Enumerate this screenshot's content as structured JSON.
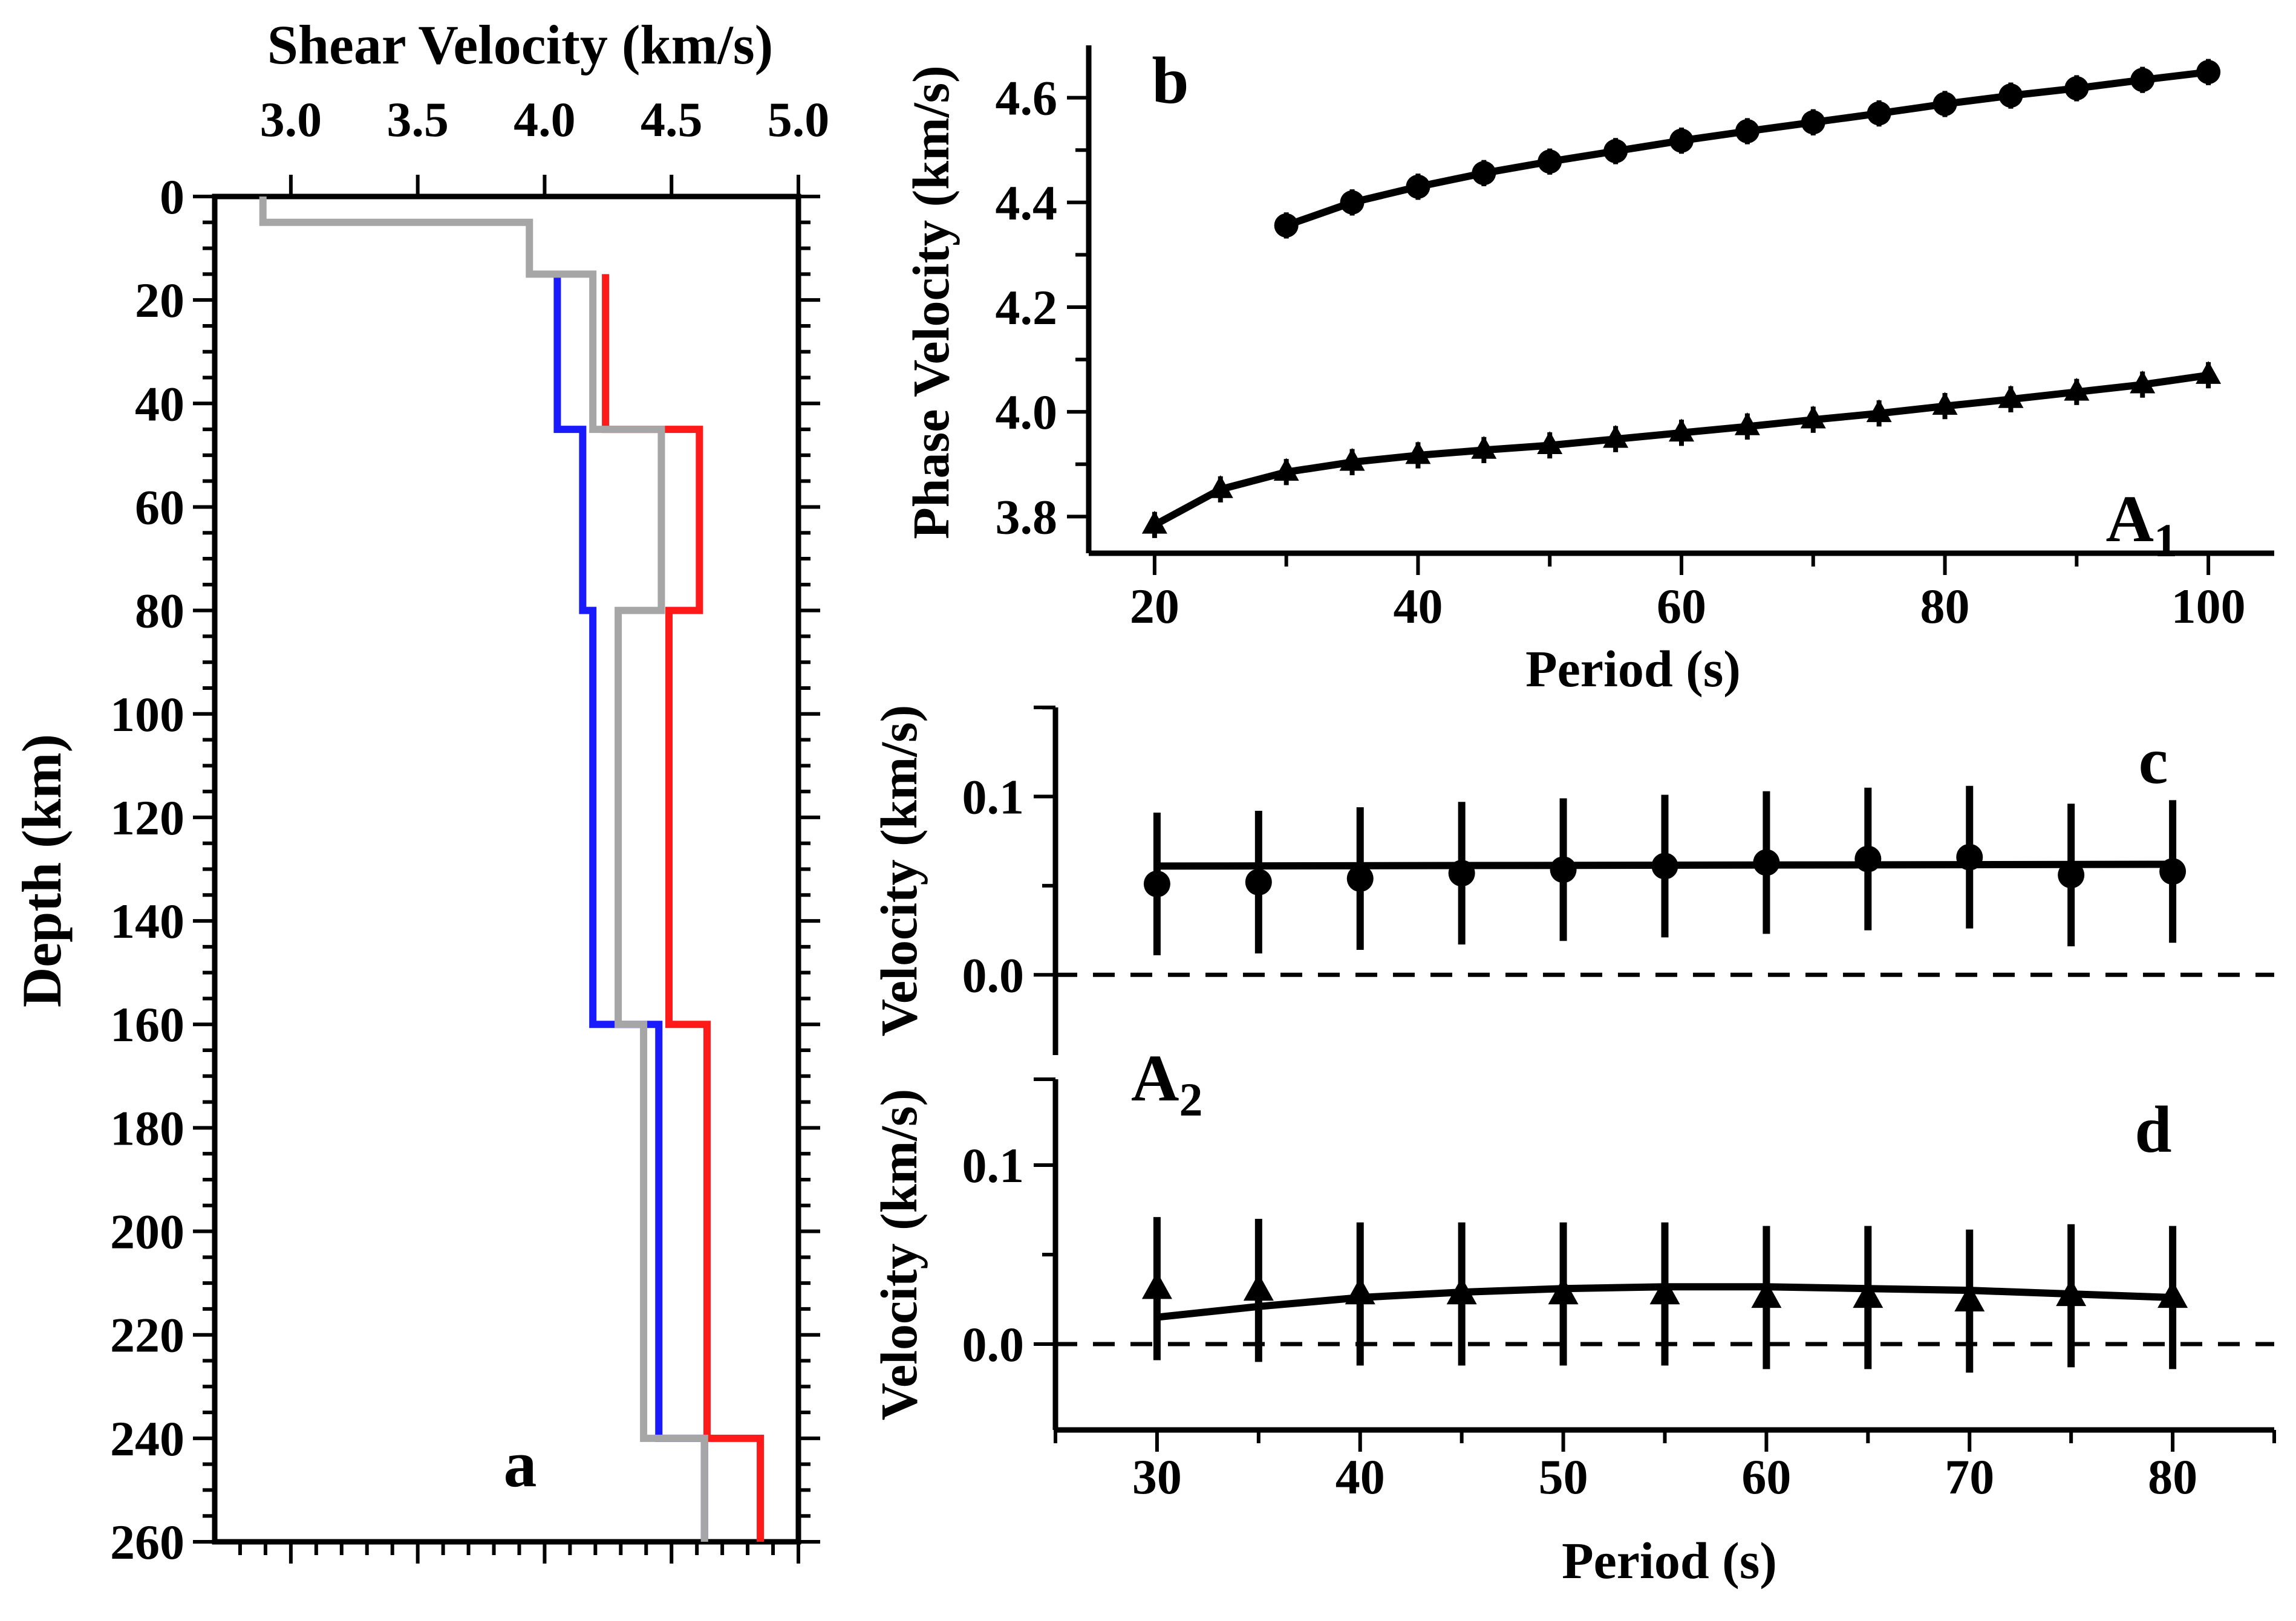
{
  "chart_data": [
    {
      "panel": "a",
      "type": "line",
      "subtype": "step-profile",
      "xlabel": "Shear Velocity (km/s)",
      "ylabel": "Depth (km)",
      "xlim": [
        2.7,
        5.0
      ],
      "ylim": [
        260,
        0
      ],
      "xticks": [
        "3.0",
        "3.5",
        "4.0",
        "4.5",
        "5.0"
      ],
      "yticks": [
        "0",
        "20",
        "40",
        "60",
        "80",
        "100",
        "120",
        "140",
        "160",
        "180",
        "200",
        "220",
        "240",
        "260"
      ],
      "panel_label": "a",
      "series": [
        {
          "name": "blue profile",
          "color": "#1a1aff",
          "depth": [
            15,
            45,
            45,
            80,
            80,
            160,
            160,
            240,
            240,
            260
          ],
          "velocity": [
            4.05,
            4.05,
            4.15,
            4.15,
            4.19,
            4.19,
            4.45,
            4.45,
            4.63,
            4.63
          ]
        },
        {
          "name": "red profile",
          "color": "#ff1a1a",
          "depth": [
            15,
            45,
            45,
            80,
            80,
            160,
            160,
            240,
            240,
            260
          ],
          "velocity": [
            4.24,
            4.24,
            4.61,
            4.61,
            4.49,
            4.49,
            4.64,
            4.64,
            4.85,
            4.85
          ]
        },
        {
          "name": "gray profile",
          "color": "#a6a6a6",
          "depth": [
            0,
            5,
            5,
            15,
            15,
            45,
            45,
            80,
            80,
            160,
            160,
            240,
            240,
            260
          ],
          "velocity": [
            2.89,
            2.89,
            3.94,
            3.94,
            4.19,
            4.19,
            4.46,
            4.46,
            4.29,
            4.29,
            4.39,
            4.39,
            4.63,
            4.63
          ]
        }
      ]
    },
    {
      "panel": "b",
      "type": "line",
      "xlabel": "Period (s)",
      "ylabel": "Phase Velocity (km/s)",
      "xlim": [
        15,
        105
      ],
      "ylim": [
        3.73,
        4.7
      ],
      "xticks": [
        "20",
        "40",
        "60",
        "80",
        "100"
      ],
      "yticks": [
        "3.8",
        "4.0",
        "4.2",
        "4.4",
        "4.6"
      ],
      "panel_label": "b",
      "annotation": {
        "main": "A",
        "sub": "1"
      },
      "series": [
        {
          "name": "upper (circles)",
          "marker": "circle",
          "x": [
            30,
            35,
            40,
            45,
            50,
            55,
            60,
            65,
            70,
            75,
            80,
            85,
            90,
            95,
            100
          ],
          "y": [
            4.356,
            4.4,
            4.43,
            4.456,
            4.478,
            4.498,
            4.518,
            4.536,
            4.553,
            4.57,
            4.588,
            4.604,
            4.618,
            4.634,
            4.649
          ],
          "err": 0.025
        },
        {
          "name": "lower (triangles)",
          "marker": "triangle",
          "x": [
            20,
            25,
            30,
            35,
            40,
            45,
            50,
            55,
            60,
            65,
            70,
            75,
            80,
            85,
            90,
            95,
            100
          ],
          "y": [
            3.784,
            3.852,
            3.885,
            3.904,
            3.917,
            3.927,
            3.936,
            3.948,
            3.96,
            3.972,
            3.985,
            3.997,
            4.011,
            4.024,
            4.038,
            4.052,
            4.07
          ],
          "err": 0.025
        }
      ]
    },
    {
      "panel": "c",
      "type": "line",
      "xlabel": "",
      "ylabel": "Velocity (km/s)",
      "xlim": [
        25,
        85
      ],
      "ylim": [
        -0.045,
        0.15
      ],
      "yticks": [
        "0.0",
        "0.1"
      ],
      "panel_label": "c",
      "series": [
        {
          "name": "circles",
          "marker": "circle",
          "x": [
            30,
            35,
            40,
            45,
            50,
            55,
            60,
            65,
            70,
            75,
            80
          ],
          "y": [
            0.051,
            0.052,
            0.054,
            0.057,
            0.059,
            0.061,
            0.063,
            0.065,
            0.066,
            0.056,
            0.058
          ],
          "err": 0.04,
          "fit": [
            0.061,
            0.062
          ]
        }
      ]
    },
    {
      "panel": "d",
      "type": "line",
      "xlabel": "Period (s)",
      "ylabel": "Velocity (km/s)",
      "xlim": [
        25,
        85
      ],
      "ylim": [
        -0.048,
        0.148
      ],
      "xticks": [
        "30",
        "40",
        "50",
        "60",
        "70",
        "80"
      ],
      "yticks": [
        "0.0",
        "0.1"
      ],
      "panel_label": "d",
      "annotation": {
        "main": "A",
        "sub": "2"
      },
      "series": [
        {
          "name": "triangles",
          "marker": "triangle",
          "x": [
            30,
            35,
            40,
            45,
            50,
            55,
            60,
            65,
            70,
            75,
            80
          ],
          "y": [
            0.031,
            0.03,
            0.028,
            0.028,
            0.028,
            0.028,
            0.026,
            0.026,
            0.024,
            0.027,
            0.026
          ],
          "err": 0.04,
          "fit_x": [
            30,
            35,
            40,
            45,
            50,
            55,
            60,
            65,
            70,
            75,
            80
          ],
          "fit_y": [
            0.015,
            0.021,
            0.026,
            0.029,
            0.031,
            0.032,
            0.032,
            0.031,
            0.03,
            0.028,
            0.026
          ]
        }
      ]
    }
  ]
}
